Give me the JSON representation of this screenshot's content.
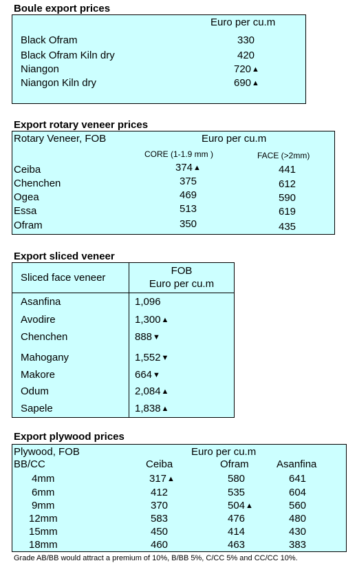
{
  "boule": {
    "title": "Boule export prices",
    "unit": "Euro per cu.m",
    "rows": [
      {
        "name": "Black Ofram",
        "value": "330",
        "trend": ""
      },
      {
        "name": "Black Ofram  Kiln dry",
        "value": "420",
        "trend": ""
      },
      {
        "name": "Niangon",
        "value": "720",
        "trend": "up"
      },
      {
        "name": "Niangon Kiln dry",
        "value": "690",
        "trend": "up"
      }
    ]
  },
  "rotary": {
    "title": "Export rotary veneer prices",
    "header_label": "Rotary Veneer,  FOB",
    "unit": "Euro  per cu.m",
    "col_core": "CORE (1-1.9 mm )",
    "col_face": "FACE (>2mm)",
    "rows": [
      {
        "name": "Ceiba",
        "core": "374",
        "core_trend": "up",
        "face": "441"
      },
      {
        "name": "Chenchen",
        "core": "375",
        "core_trend": "",
        "face": "612"
      },
      {
        "name": "Ogea",
        "core": "469",
        "core_trend": "",
        "face": "590"
      },
      {
        "name": "Essa",
        "core": "513",
        "core_trend": "",
        "face": "619"
      },
      {
        "name": "Ofram",
        "core": "350",
        "core_trend": "",
        "face": "435"
      }
    ]
  },
  "sliced": {
    "title": "Export sliced veneer",
    "header_label": "Sliced face veneer",
    "header_fob": "FOB",
    "header_unit": "Euro per cu.m",
    "rows": [
      {
        "name": "Asanfina",
        "value": "1,096",
        "trend": ""
      },
      {
        "name": "Avodire",
        "value": "1,300",
        "trend": "up"
      },
      {
        "name": "Chenchen",
        "value": "888",
        "trend": "down"
      },
      {
        "name": "Mahogany",
        "value": "1,552",
        "trend": "down"
      },
      {
        "name": "Makore",
        "value": "664",
        "trend": "down"
      },
      {
        "name": "Odum",
        "value": "2,084",
        "trend": "up"
      },
      {
        "name": "Sapele",
        "value": "1,838",
        "trend": "up"
      }
    ]
  },
  "plywood": {
    "title": "Export plywood prices",
    "header_label": "Plywood, FOB",
    "unit": "Euro per cu.m",
    "grade_label": "BB/CC",
    "columns": [
      "Ceiba",
      "Ofram",
      "Asanfina"
    ],
    "rows": [
      {
        "size": "4mm",
        "ceiba": "317",
        "ceiba_trend": "up",
        "ofram": "580",
        "ofram_trend": "",
        "asanfina": "641"
      },
      {
        "size": "6mm",
        "ceiba": "412",
        "ceiba_trend": "",
        "ofram": "535",
        "ofram_trend": "",
        "asanfina": "604"
      },
      {
        "size": "9mm",
        "ceiba": "370",
        "ceiba_trend": "",
        "ofram": "504",
        "ofram_trend": "up",
        "asanfina": "560"
      },
      {
        "size": "12mm",
        "ceiba": "583",
        "ceiba_trend": "",
        "ofram": "476",
        "ofram_trend": "",
        "asanfina": "480"
      },
      {
        "size": "15mm",
        "ceiba": "450",
        "ceiba_trend": "",
        "ofram": "414",
        "ofram_trend": "",
        "asanfina": "430"
      },
      {
        "size": "18mm",
        "ceiba": "460",
        "ceiba_trend": "",
        "ofram": "463",
        "ofram_trend": "",
        "asanfina": "383"
      }
    ],
    "note": "Grade AB/BB would attract a premium of 10%, B/BB 5%, C/CC 5% and CC/CC 10%."
  },
  "icons": {
    "up": "up-arrow-icon",
    "down": "down-arrow-icon"
  },
  "colors": {
    "panel_bg": "#ccffff",
    "border": "#000000"
  }
}
